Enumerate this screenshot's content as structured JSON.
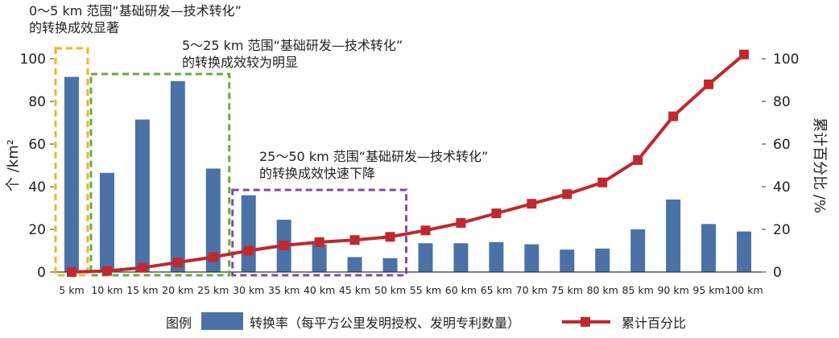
{
  "annotations": [
    {
      "id": "a1",
      "line1": "0～5 km 范围“基础研发—技术转化”",
      "line2": "的转换成效显著",
      "color": "#f0b429"
    },
    {
      "id": "a2",
      "line1": "5～25 km 范围“基础研发—技术转化”",
      "line2": "的转换成效较为明显",
      "color": "#6aaa3a"
    },
    {
      "id": "a3",
      "line1": "25～50 km 范围“基础研发—技术转化”",
      "line2": "的转换成效快速下降",
      "color": "#7b4ea3"
    }
  ],
  "legend": {
    "title": "图例",
    "bar_label": "转换率（每平方公里发明授权、发明专利数量）",
    "line_label": "累计百分比"
  },
  "colors": {
    "bar": "#4a72a6",
    "line": "#c0282d",
    "axis": "#333333"
  },
  "chart_data": {
    "type": "bar",
    "categories": [
      "5 km",
      "10 km",
      "15 km",
      "20 km",
      "25 km",
      "30 km",
      "35 km",
      "40 km",
      "45 km",
      "50 km",
      "55 km",
      "60 km",
      "65 km",
      "70 km",
      "75 km",
      "80 km",
      "85 km",
      "90 km",
      "95 km",
      "100 km"
    ],
    "series": [
      {
        "name": "转换率（每平方公里发明授权、发明专利数量）",
        "type": "bar",
        "axis": "left",
        "values": [
          91.5,
          46.5,
          71.5,
          89.5,
          48.5,
          36,
          24.5,
          13,
          7,
          6.5,
          13.5,
          13.5,
          14,
          13,
          10.5,
          11,
          20,
          34,
          22.5,
          19
        ]
      },
      {
        "name": "累计百分比",
        "type": "line",
        "axis": "right",
        "values": [
          0,
          0.5,
          2,
          4.5,
          7,
          10,
          12.5,
          14,
          15,
          16.5,
          19.5,
          23,
          27.5,
          32,
          36.5,
          42,
          52.5,
          73,
          88,
          102
        ]
      }
    ],
    "ylabel": "个 /km²",
    "y2label": "累计百分比 /%",
    "ylim": [
      0,
      100
    ],
    "y2lim": [
      0,
      100
    ],
    "yticks": [
      0,
      20,
      40,
      60,
      80,
      100
    ],
    "y2ticks": [
      0,
      20,
      40,
      60,
      80,
      100
    ],
    "grid": false,
    "legend_position": "bottom",
    "highlight_boxes": [
      {
        "from": "5 km",
        "to": "5 km",
        "color": "#f0b429"
      },
      {
        "from": "10 km",
        "to": "25 km",
        "color": "#6aaa3a"
      },
      {
        "from": "30 km",
        "to": "50 km",
        "color": "#7b4ea3"
      }
    ]
  }
}
